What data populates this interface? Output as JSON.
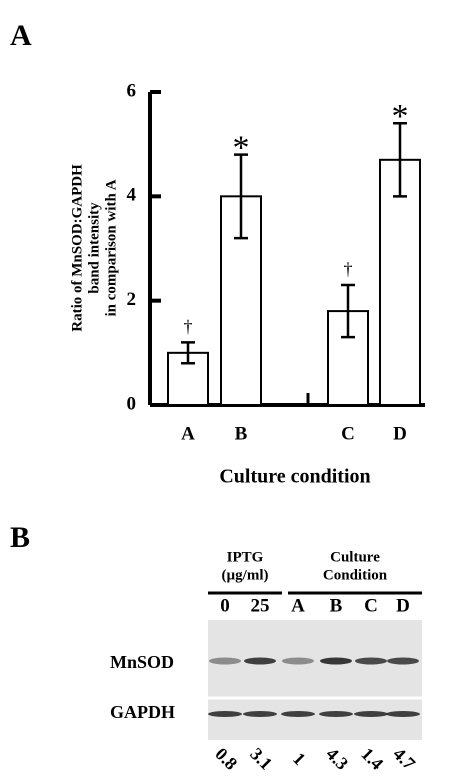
{
  "panel_labels": [
    "A",
    "B"
  ],
  "chart_data": {
    "type": "bar",
    "ylabel": [
      "Ratio of MnSOD:GAPDH",
      "band intensity",
      "in comparison with A"
    ],
    "xlabel": "Culture condition",
    "categories": [
      "A",
      "B",
      "C",
      "D"
    ],
    "values": [
      1.0,
      4.0,
      1.8,
      4.7
    ],
    "errors": [
      0.2,
      0.8,
      0.5,
      0.7
    ],
    "annotations": [
      "†",
      "*",
      "†",
      "*"
    ],
    "color": "#ffffff",
    "ylim": [
      0,
      6
    ],
    "yticks": [
      0,
      2,
      4,
      6
    ],
    "grid": false
  },
  "blot": {
    "groups": [
      {
        "label": [
          "IPTG",
          "(µg/ml)"
        ],
        "lanes": [
          "0",
          "25"
        ]
      },
      {
        "label": [
          "Culture",
          "Condition"
        ],
        "lanes": [
          "A",
          "B",
          "C",
          "D"
        ]
      }
    ],
    "rows": [
      "MnSOD",
      "GAPDH"
    ],
    "ratios": [
      "0.8",
      "3.1",
      "1",
      "4.3",
      "1.4",
      "4.7"
    ]
  }
}
